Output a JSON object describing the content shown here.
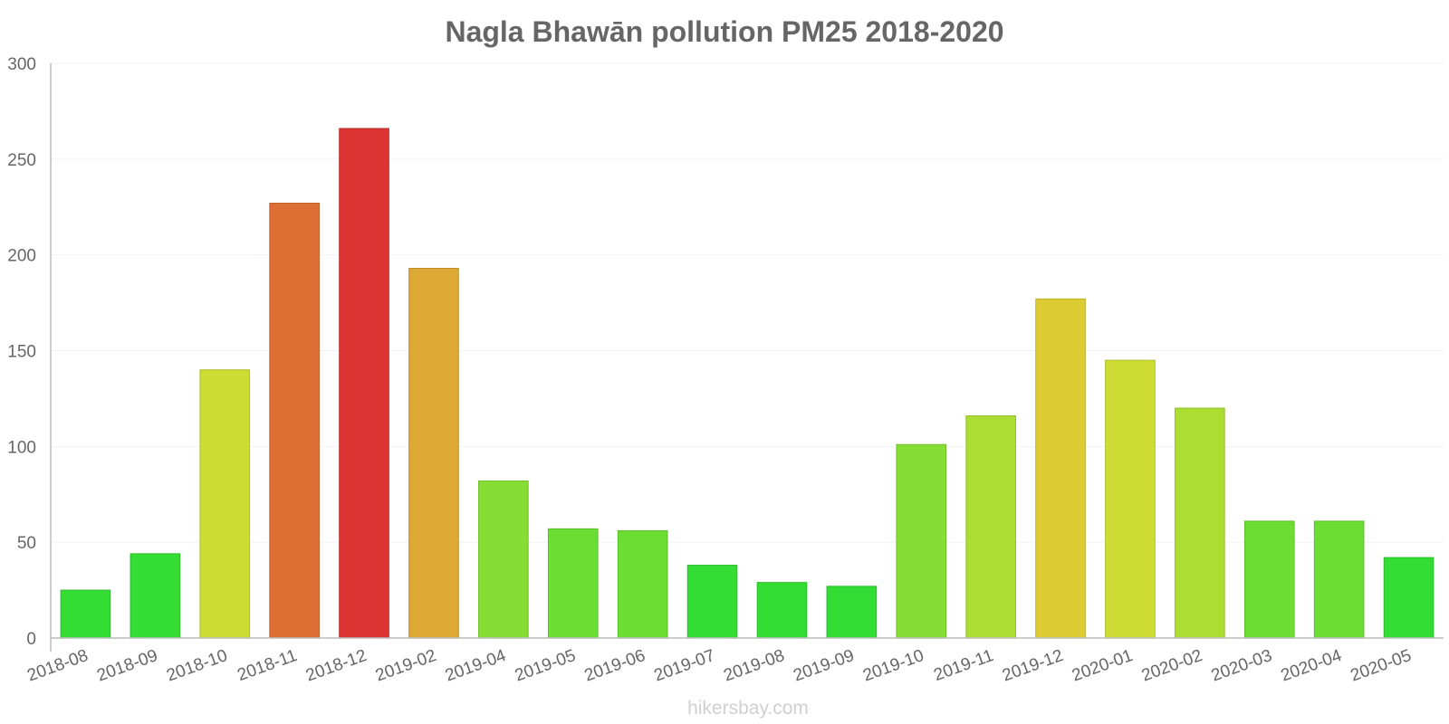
{
  "chart_data": {
    "type": "bar",
    "title": "Nagla Bhawān pollution PM25 2018-2020",
    "xlabel": "",
    "ylabel": "",
    "ylim": [
      0,
      300
    ],
    "yticks": [
      0,
      50,
      100,
      150,
      200,
      250,
      300
    ],
    "grid": true,
    "categories": [
      "2018-08",
      "2018-09",
      "2018-10",
      "2018-11",
      "2018-12",
      "2019-02",
      "2019-04",
      "2019-05",
      "2019-06",
      "2019-07",
      "2019-08",
      "2019-09",
      "2019-10",
      "2019-11",
      "2019-12",
      "2020-01",
      "2020-02",
      "2020-03",
      "2020-04",
      "2020-05"
    ],
    "values": [
      25,
      44,
      140,
      227,
      266,
      193,
      82,
      57,
      56,
      38,
      29,
      27,
      101,
      116,
      177,
      145,
      120,
      61,
      61,
      42
    ],
    "colors": [
      "#33dd33",
      "#33dd33",
      "#cddd33",
      "#dd6e33",
      "#dd3333",
      "#dda833",
      "#86dd33",
      "#6bdd33",
      "#6bdd33",
      "#33dd33",
      "#33dd33",
      "#33dd33",
      "#86dd33",
      "#acdd33",
      "#ddcb33",
      "#cddd33",
      "#acdd33",
      "#6bdd33",
      "#6bdd33",
      "#33dd33"
    ]
  },
  "watermark": "hikersbay.com"
}
